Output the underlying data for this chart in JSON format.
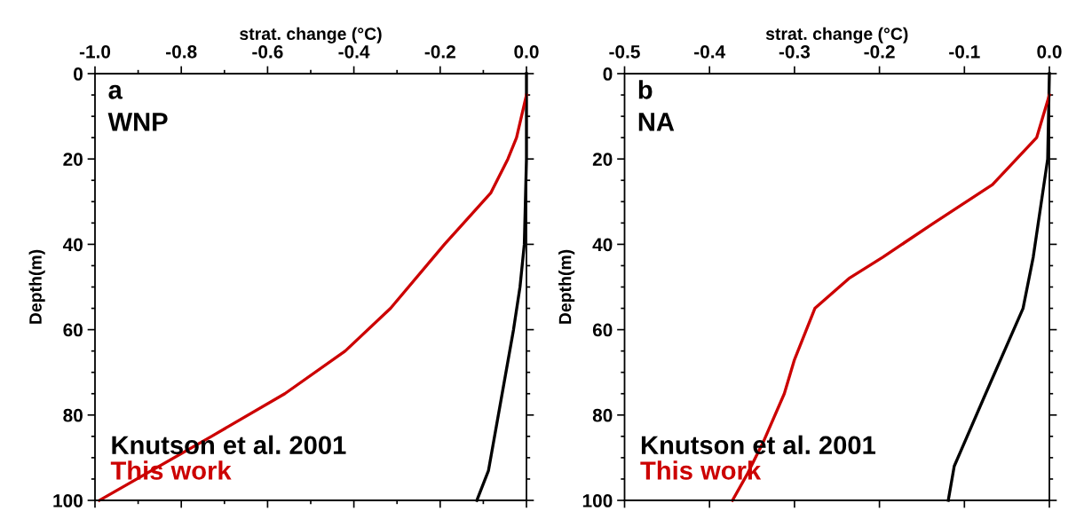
{
  "chart_data": [
    {
      "type": "line",
      "xlabel": "strat. change (°C)",
      "ylabel": "Depth(m)",
      "annotations": [
        "a",
        "WNP"
      ],
      "legend": "bottom left",
      "grid": false,
      "xlim": [
        -1.0,
        0.0
      ],
      "xticks": [
        {
          "value": -1.0,
          "label": "-1.0"
        },
        {
          "value": -0.9,
          "label": null
        },
        {
          "value": -0.8,
          "label": "-0.8"
        },
        {
          "value": -0.7,
          "label": null
        },
        {
          "value": -0.6,
          "label": "-0.6"
        },
        {
          "value": -0.5,
          "label": null
        },
        {
          "value": -0.4,
          "label": "-0.4"
        },
        {
          "value": -0.3,
          "label": null
        },
        {
          "value": -0.2,
          "label": "-0.2"
        },
        {
          "value": -0.1,
          "label": null
        },
        {
          "value": 0.0,
          "label": "0.0"
        }
      ],
      "ylim": [
        100,
        0
      ],
      "yticks": [
        0,
        {
          "value": 5,
          "label": null
        },
        {
          "value": 10,
          "label": null
        },
        {
          "value": 15,
          "label": null
        },
        20,
        {
          "value": 25,
          "label": null
        },
        {
          "value": 30,
          "label": null
        },
        {
          "value": 35,
          "label": null
        },
        40,
        {
          "value": 45,
          "label": null
        },
        {
          "value": 50,
          "label": null
        },
        {
          "value": 55,
          "label": null
        },
        60,
        {
          "value": 65,
          "label": null
        },
        {
          "value": 70,
          "label": null
        },
        {
          "value": 75,
          "label": null
        },
        80,
        {
          "value": 85,
          "label": null
        },
        {
          "value": 90,
          "label": null
        },
        {
          "value": 95,
          "label": null
        },
        100
      ],
      "series": [
        {
          "name": "Knutson et al. 2001",
          "color": "#000000",
          "x": [
            0.0,
            0.0,
            -0.005,
            -0.015,
            -0.03,
            -0.088,
            -0.115
          ],
          "values": [
            0,
            20,
            40,
            50,
            60,
            93,
            100
          ]
        },
        {
          "name": "This work",
          "color": "#cc0000",
          "x": [
            0.0,
            -0.023,
            -0.043,
            -0.083,
            -0.19,
            -0.315,
            -0.42,
            -0.56,
            -0.73,
            -0.99
          ],
          "values": [
            5,
            15,
            20,
            28,
            40,
            55,
            65,
            75,
            85,
            100
          ]
        }
      ]
    },
    {
      "type": "line",
      "xlabel": "strat. change (°C)",
      "ylabel": "Depth(m)",
      "annotations": [
        "b",
        "NA"
      ],
      "legend": "bottom left",
      "grid": false,
      "xlim": [
        -0.5,
        0.0
      ],
      "xticks": [
        {
          "value": -0.5,
          "label": "-0.5"
        },
        {
          "value": -0.4,
          "label": "-0.4"
        },
        {
          "value": -0.3,
          "label": "-0.3"
        },
        {
          "value": -0.2,
          "label": "-0.2"
        },
        {
          "value": -0.1,
          "label": "-0.1"
        },
        {
          "value": 0.0,
          "label": "0.0"
        }
      ],
      "ylim": [
        100,
        0
      ],
      "yticks": [
        0,
        {
          "value": 5,
          "label": null
        },
        {
          "value": 10,
          "label": null
        },
        {
          "value": 15,
          "label": null
        },
        20,
        {
          "value": 25,
          "label": null
        },
        {
          "value": 30,
          "label": null
        },
        {
          "value": 35,
          "label": null
        },
        40,
        {
          "value": 45,
          "label": null
        },
        {
          "value": 50,
          "label": null
        },
        {
          "value": 55,
          "label": null
        },
        60,
        {
          "value": 65,
          "label": null
        },
        {
          "value": 70,
          "label": null
        },
        {
          "value": 75,
          "label": null
        },
        80,
        {
          "value": 85,
          "label": null
        },
        {
          "value": 90,
          "label": null
        },
        {
          "value": 95,
          "label": null
        },
        100
      ],
      "series": [
        {
          "name": "Knutson et al. 2001",
          "color": "#000000",
          "x": [
            0.0,
            -0.002,
            -0.019,
            -0.031,
            -0.075,
            -0.112,
            -0.119
          ],
          "values": [
            0,
            20,
            43,
            55,
            75,
            92,
            100
          ]
        },
        {
          "name": "This work",
          "color": "#cc0000",
          "x": [
            0.0,
            -0.015,
            -0.067,
            -0.136,
            -0.196,
            -0.236,
            -0.276,
            -0.3,
            -0.312,
            -0.336,
            -0.356,
            -0.373
          ],
          "values": [
            5,
            15,
            26,
            35,
            43,
            48,
            55,
            67,
            75,
            86,
            94,
            100
          ]
        }
      ]
    }
  ]
}
